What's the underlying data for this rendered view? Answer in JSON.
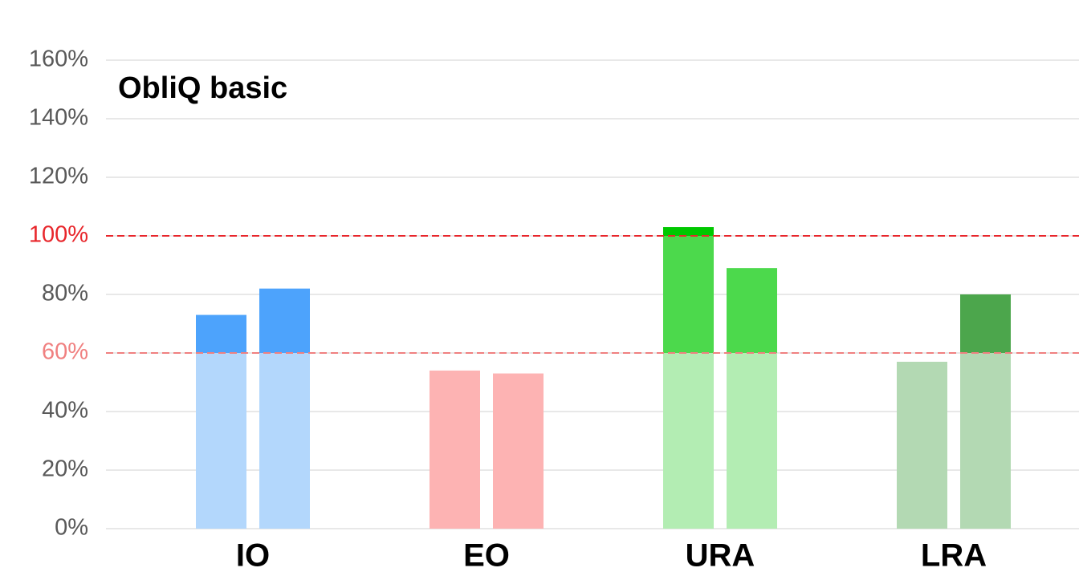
{
  "chart_data": {
    "type": "bar",
    "annotation": "ObliQ basic",
    "categories": [
      "IO",
      "EO",
      "URA",
      "LRA"
    ],
    "series": [
      {
        "values": [
          73,
          54,
          103,
          57
        ]
      },
      {
        "values": [
          82,
          53,
          89,
          80
        ]
      }
    ],
    "category_colors": [
      [
        "#b3d7fc",
        "#4da3fc",
        "#4da3fc"
      ],
      [
        "#fdb3b3",
        "#f97f7f",
        "#f97f7f"
      ],
      [
        "#b3edb3",
        "#4cd94c",
        "#00c800"
      ],
      [
        "#b3d9b3",
        "#4ca64c",
        "#4ca64c"
      ]
    ],
    "reference_lines": [
      {
        "value": 100,
        "color": "#e8262b"
      },
      {
        "value": 60,
        "color": "#f08080"
      }
    ],
    "ylim": [
      0,
      160
    ],
    "yticks": [
      {
        "value": 0,
        "label": "0%"
      },
      {
        "value": 20,
        "label": "20%"
      },
      {
        "value": 40,
        "label": "40%"
      },
      {
        "value": 60,
        "label": "60%"
      },
      {
        "value": 80,
        "label": "80%"
      },
      {
        "value": 100,
        "label": "100%"
      },
      {
        "value": 120,
        "label": "120%"
      },
      {
        "value": 140,
        "label": "140%"
      },
      {
        "value": 160,
        "label": "160%"
      }
    ],
    "grid": true
  }
}
